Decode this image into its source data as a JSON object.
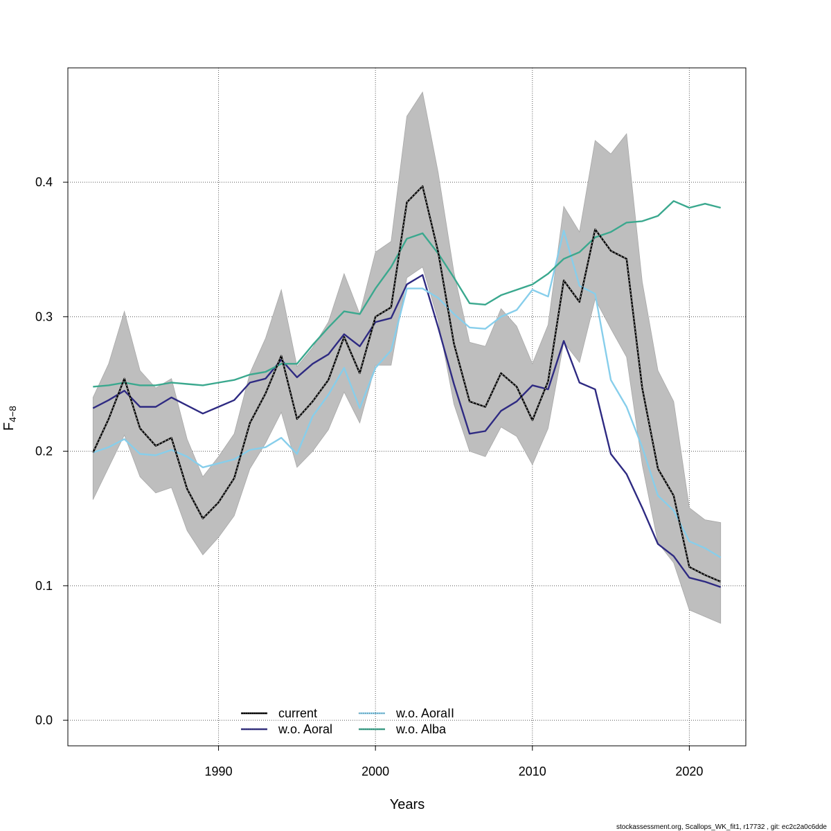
{
  "chart_data": {
    "type": "line",
    "title": "",
    "xlabel": "Years",
    "ylabel_main": "F",
    "ylabel_sub": "4−8",
    "xlim": [
      1980.4,
      2023.6
    ],
    "ylim": [
      -0.019,
      0.485
    ],
    "x_ticks": [
      1990,
      2000,
      2010,
      2020
    ],
    "y_ticks": [
      0.0,
      0.1,
      0.2,
      0.3,
      0.4
    ],
    "y_tick_labels": [
      "0.0",
      "0.1",
      "0.2",
      "0.3",
      "0.4"
    ],
    "grid": true,
    "legend_position": "bottom-center",
    "x": [
      1982,
      1983,
      1984,
      1985,
      1986,
      1987,
      1988,
      1989,
      1990,
      1991,
      1992,
      1993,
      1994,
      1995,
      1996,
      1997,
      1998,
      1999,
      2000,
      2001,
      2002,
      2003,
      2004,
      2005,
      2006,
      2007,
      2008,
      2009,
      2010,
      2011,
      2012,
      2013,
      2014,
      2015,
      2016,
      2017,
      2018,
      2019,
      2020,
      2021,
      2022
    ],
    "band": {
      "lower": [
        0.164,
        0.188,
        0.212,
        0.181,
        0.169,
        0.173,
        0.141,
        0.123,
        0.136,
        0.152,
        0.187,
        0.206,
        0.229,
        0.188,
        0.2,
        0.216,
        0.244,
        0.221,
        0.264,
        0.264,
        0.329,
        0.337,
        0.297,
        0.235,
        0.2,
        0.196,
        0.218,
        0.211,
        0.19,
        0.217,
        0.281,
        0.266,
        0.313,
        0.291,
        0.27,
        0.19,
        0.132,
        0.117,
        0.082,
        0.077,
        0.072
      ],
      "upper": [
        0.24,
        0.265,
        0.304,
        0.26,
        0.247,
        0.254,
        0.209,
        0.181,
        0.196,
        0.213,
        0.258,
        0.284,
        0.32,
        0.263,
        0.277,
        0.296,
        0.332,
        0.302,
        0.348,
        0.356,
        0.449,
        0.467,
        0.407,
        0.333,
        0.281,
        0.278,
        0.306,
        0.293,
        0.265,
        0.294,
        0.382,
        0.363,
        0.431,
        0.421,
        0.436,
        0.326,
        0.26,
        0.237,
        0.158,
        0.149,
        0.147
      ],
      "color": "#bebebe"
    },
    "series": [
      {
        "name": "current",
        "color": "#000000",
        "values": [
          0.199,
          0.224,
          0.254,
          0.217,
          0.204,
          0.21,
          0.172,
          0.15,
          0.162,
          0.18,
          0.221,
          0.243,
          0.271,
          0.224,
          0.237,
          0.253,
          0.285,
          0.258,
          0.3,
          0.307,
          0.385,
          0.397,
          0.348,
          0.28,
          0.237,
          0.233,
          0.258,
          0.248,
          0.223,
          0.252,
          0.327,
          0.311,
          0.365,
          0.349,
          0.343,
          0.247,
          0.187,
          0.167,
          0.114,
          0.108,
          0.103
        ]
      },
      {
        "name": "w.o. Aoral",
        "color": "#2e2a82",
        "values": [
          0.232,
          0.238,
          0.245,
          0.233,
          0.233,
          0.24,
          0.234,
          0.228,
          0.233,
          0.238,
          0.251,
          0.254,
          0.268,
          0.255,
          0.265,
          0.272,
          0.287,
          0.278,
          0.296,
          0.299,
          0.324,
          0.331,
          0.292,
          0.25,
          0.213,
          0.215,
          0.23,
          0.237,
          0.249,
          0.246,
          0.282,
          0.251,
          0.246,
          0.198,
          0.183,
          0.158,
          0.131,
          0.122,
          0.106,
          0.103,
          0.099
        ]
      },
      {
        "name": "w.o. AoraII",
        "color": "#87ceeb",
        "values": [
          0.199,
          0.203,
          0.209,
          0.198,
          0.197,
          0.201,
          0.196,
          0.188,
          0.191,
          0.194,
          0.201,
          0.203,
          0.21,
          0.198,
          0.226,
          0.242,
          0.262,
          0.232,
          0.262,
          0.275,
          0.321,
          0.321,
          0.314,
          0.302,
          0.292,
          0.291,
          0.3,
          0.305,
          0.32,
          0.315,
          0.364,
          0.323,
          0.317,
          0.253,
          0.233,
          0.203,
          0.167,
          0.156,
          0.133,
          0.128,
          0.121
        ]
      },
      {
        "name": "w.o. Alba",
        "color": "#3aa88e",
        "values": [
          0.248,
          0.249,
          0.251,
          0.249,
          0.249,
          0.251,
          0.25,
          0.249,
          0.251,
          0.253,
          0.257,
          0.259,
          0.265,
          0.265,
          0.279,
          0.292,
          0.304,
          0.302,
          0.321,
          0.337,
          0.358,
          0.362,
          0.347,
          0.329,
          0.31,
          0.309,
          0.316,
          0.32,
          0.324,
          0.332,
          0.343,
          0.348,
          0.359,
          0.363,
          0.37,
          0.371,
          0.375,
          0.386,
          0.381,
          0.384,
          0.381
        ]
      }
    ]
  },
  "footer": "stockassessment.org, Scallops_WK_fit1, r17732 , git: ec2c2a0c6dde"
}
